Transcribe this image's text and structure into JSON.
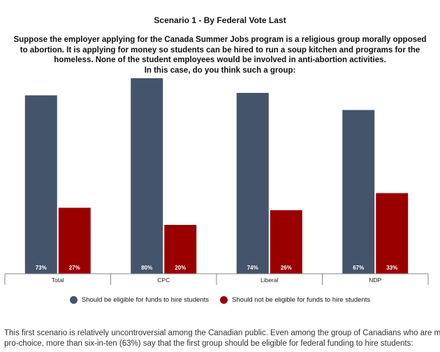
{
  "header": {
    "title": "Scenario 1 - By Federal Vote Last",
    "question_lines": [
      "Suppose the employer applying for the Canada Summer Jobs program is a religious group morally opposed",
      "to abortion. It is applying for money so students can be hired to run a soup kitchen and programs for the",
      "homeless. None of the student employees would be involved in anti-abortion activities.",
      "In this case, do you think such a group:"
    ]
  },
  "chart_data": {
    "type": "bar",
    "categories": [
      "Total",
      "CPC",
      "Liberal",
      "NDP"
    ],
    "series": [
      {
        "name": "Should be eligible for funds to hire students",
        "values": [
          73,
          80,
          74,
          67
        ],
        "labels": [
          "73%",
          "80%",
          "74%",
          "67%"
        ],
        "color": "#44546a"
      },
      {
        "name": "Should not be eligible for funds to hire students",
        "values": [
          27,
          20,
          26,
          33
        ],
        "labels": [
          "27%",
          "20%",
          "26%",
          "33%"
        ],
        "color": "#9a0000"
      }
    ],
    "ylim": [
      0,
      100
    ],
    "grid": false,
    "legend_position": "bottom"
  },
  "footer": {
    "lines": [
      "This first scenario is relatively uncontroversial among the Canadian public. Even among the group of Canadians who are most",
      "pro-choice, more than six-in-ten (63%) say that the first group should be eligible for federal funding to hire students:"
    ]
  }
}
